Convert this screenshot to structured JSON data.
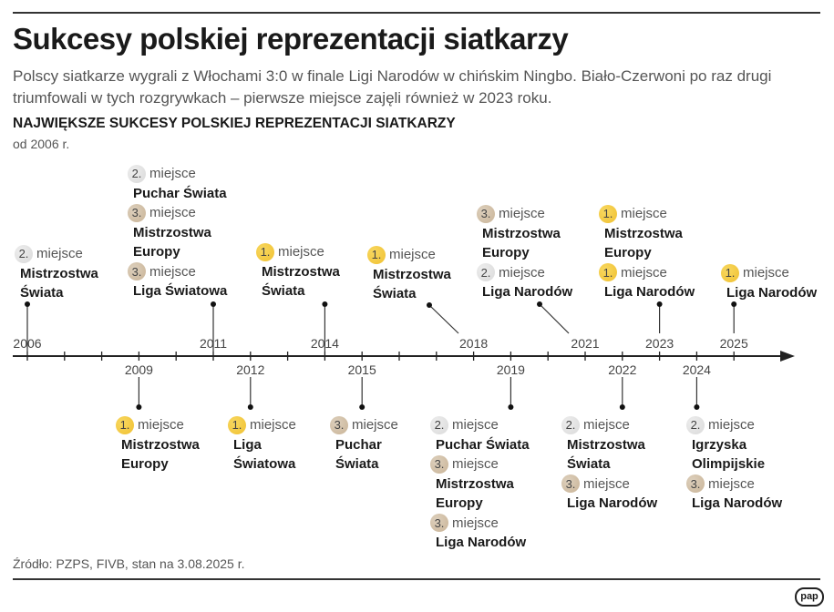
{
  "header": {
    "title": "Sukcesy polskiej reprezentacji siatkarzy",
    "lead": "Polscy siatkarze wygrali z Włochami 3:0 w finale Ligi Narodów w chińskim Ningbo. Biało-Czerwoni po raz drugi triumfowali w tych rozgrywkach – pierwsze miejsce zajęli również w 2023 roku.",
    "subtitle": "NAJWIĘKSZE SUKCESY POLSKIEJ REPREZENTACJI SIATKARZY",
    "since": "od 2006 r."
  },
  "colors": {
    "gold": "#f0c030",
    "silver": "#d9d9d9",
    "bronze": "#c9b396"
  },
  "timeline": {
    "start_year": 2006,
    "end_year": 2025,
    "labels_above": [
      "2006",
      "2011",
      "2014",
      "2018",
      "2021",
      "2023",
      "2025"
    ],
    "labels_below": [
      "2009",
      "2012",
      "2015",
      "2019",
      "2022",
      "2024"
    ],
    "entries": [
      {
        "year": 2006,
        "side": "above",
        "results": [
          {
            "place": "2.",
            "label": "miejsce",
            "event": "Mistrzostwa Świata"
          }
        ]
      },
      {
        "year": 2011,
        "side": "above",
        "results": [
          {
            "place": "2.",
            "label": "miejsce",
            "event": "Puchar Świata"
          },
          {
            "place": "3.",
            "label": "miejsce",
            "event": "Mistrzostwa Europy"
          },
          {
            "place": "3.",
            "label": "miejsce",
            "event": "Liga Światowa"
          }
        ]
      },
      {
        "year": 2014,
        "side": "above",
        "results": [
          {
            "place": "1.",
            "label": "miejsce",
            "event": "Mistrzostwa Świata"
          }
        ]
      },
      {
        "year": 2018,
        "side": "above",
        "results": [
          {
            "place": "1.",
            "label": "miejsce",
            "event": "Mistrzostwa Świata"
          }
        ]
      },
      {
        "year": 2021,
        "side": "above",
        "results": [
          {
            "place": "3.",
            "label": "miejsce",
            "event": "Mistrzostwa Europy"
          },
          {
            "place": "2.",
            "label": "miejsce",
            "event": "Liga Narodów"
          }
        ]
      },
      {
        "year": 2023,
        "side": "above",
        "results": [
          {
            "place": "1.",
            "label": "miejsce",
            "event": "Mistrzostwa Europy"
          },
          {
            "place": "1.",
            "label": "miejsce",
            "event": "Liga Narodów"
          }
        ]
      },
      {
        "year": 2025,
        "side": "above",
        "results": [
          {
            "place": "1.",
            "label": "miejsce",
            "event": "Liga Narodów"
          }
        ]
      },
      {
        "year": 2009,
        "side": "below",
        "results": [
          {
            "place": "1.",
            "label": "miejsce",
            "event": "Mistrzostwa Europy"
          }
        ]
      },
      {
        "year": 2012,
        "side": "below",
        "results": [
          {
            "place": "1.",
            "label": "miejsce",
            "event": "Liga Światowa"
          }
        ]
      },
      {
        "year": 2015,
        "side": "below",
        "results": [
          {
            "place": "3.",
            "label": "miejsce",
            "event": "Puchar Świata"
          }
        ]
      },
      {
        "year": 2019,
        "side": "below",
        "results": [
          {
            "place": "2.",
            "label": "miejsce",
            "event": "Puchar Świata"
          },
          {
            "place": "3.",
            "label": "miejsce",
            "event": "Mistrzostwa Europy"
          },
          {
            "place": "3.",
            "label": "miejsce",
            "event": "Liga Narodów"
          }
        ]
      },
      {
        "year": 2022,
        "side": "below",
        "results": [
          {
            "place": "2.",
            "label": "miejsce",
            "event": "Mistrzostwa Świata"
          },
          {
            "place": "3.",
            "label": "miejsce",
            "event": "Liga Narodów"
          }
        ]
      },
      {
        "year": 2024,
        "side": "below",
        "results": [
          {
            "place": "2.",
            "label": "miejsce",
            "event": "Igrzyska Olimpijskie"
          },
          {
            "place": "3.",
            "label": "miejsce",
            "event": "Liga Narodów"
          }
        ]
      }
    ]
  },
  "footer": {
    "source": "Źródło: PZPS, FIVB, stan na 3.08.2025 r.",
    "logo": "pap"
  }
}
